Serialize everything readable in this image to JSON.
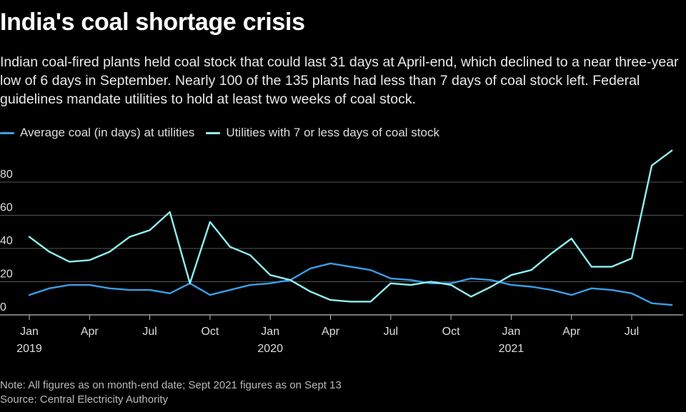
{
  "colors": {
    "background": "#000000",
    "series1": "#3b9ee6",
    "series2": "#8ff1f3",
    "grid": "#555555",
    "text": "#ffffff",
    "muted": "#b9b9b9"
  },
  "chart_data": {
    "type": "line",
    "title": "India's coal shortage crisis",
    "subtitle": "Indian coal-fired plants held coal stock that could last 31 days at April-end, which declined to a near three-year low of 6 days in September. Nearly 100 of the 135 plants had less than 7 days of coal stock left. Federal guidelines mandate utilities to hold at least two weeks of coal stock.",
    "xlabel": "",
    "ylabel": "",
    "ylim": [
      0,
      80
    ],
    "yticks": [
      "0",
      "20",
      "40",
      "60",
      "80"
    ],
    "grid": true,
    "legend_position": "top-left",
    "x_tick_labels": [
      {
        "month": "Jan",
        "year": "2019"
      },
      {
        "month": "Apr",
        "year": ""
      },
      {
        "month": "Jul",
        "year": ""
      },
      {
        "month": "Oct",
        "year": ""
      },
      {
        "month": "Jan",
        "year": "2020"
      },
      {
        "month": "Apr",
        "year": ""
      },
      {
        "month": "Jul",
        "year": ""
      },
      {
        "month": "Oct",
        "year": ""
      },
      {
        "month": "Jan",
        "year": "2021"
      },
      {
        "month": "Apr",
        "year": ""
      },
      {
        "month": "Jul",
        "year": ""
      }
    ],
    "x": [
      "2019-01",
      "2019-02",
      "2019-03",
      "2019-04",
      "2019-05",
      "2019-06",
      "2019-07",
      "2019-08",
      "2019-09",
      "2019-10",
      "2019-11",
      "2019-12",
      "2020-01",
      "2020-02",
      "2020-03",
      "2020-04",
      "2020-05",
      "2020-06",
      "2020-07",
      "2020-08",
      "2020-09",
      "2020-10",
      "2020-11",
      "2020-12",
      "2021-01",
      "2021-02",
      "2021-03",
      "2021-04",
      "2021-05",
      "2021-06",
      "2021-07",
      "2021-08",
      "2021-09"
    ],
    "series": [
      {
        "name": "Average coal (in days) at utilities",
        "values": [
          12,
          16,
          18,
          18,
          16,
          15,
          15,
          13,
          19,
          12,
          15,
          18,
          19,
          21,
          28,
          31,
          29,
          27,
          22,
          21,
          19,
          19,
          22,
          21,
          18,
          17,
          15,
          12,
          16,
          15,
          13,
          7,
          6
        ]
      },
      {
        "name": "Utilities with 7 or less days of coal stock",
        "values": [
          47,
          38,
          32,
          33,
          38,
          47,
          51,
          62,
          19,
          56,
          41,
          36,
          24,
          21,
          14,
          9,
          8,
          8,
          19,
          18,
          20,
          18,
          11,
          17,
          24,
          27,
          37,
          46,
          29,
          29,
          34,
          90,
          99
        ]
      }
    ]
  },
  "footer": {
    "note": "Note: All figures as on month-end date; Sept 2021 figures as on Sept 13",
    "source": "Source: Central Electricity Authority"
  }
}
